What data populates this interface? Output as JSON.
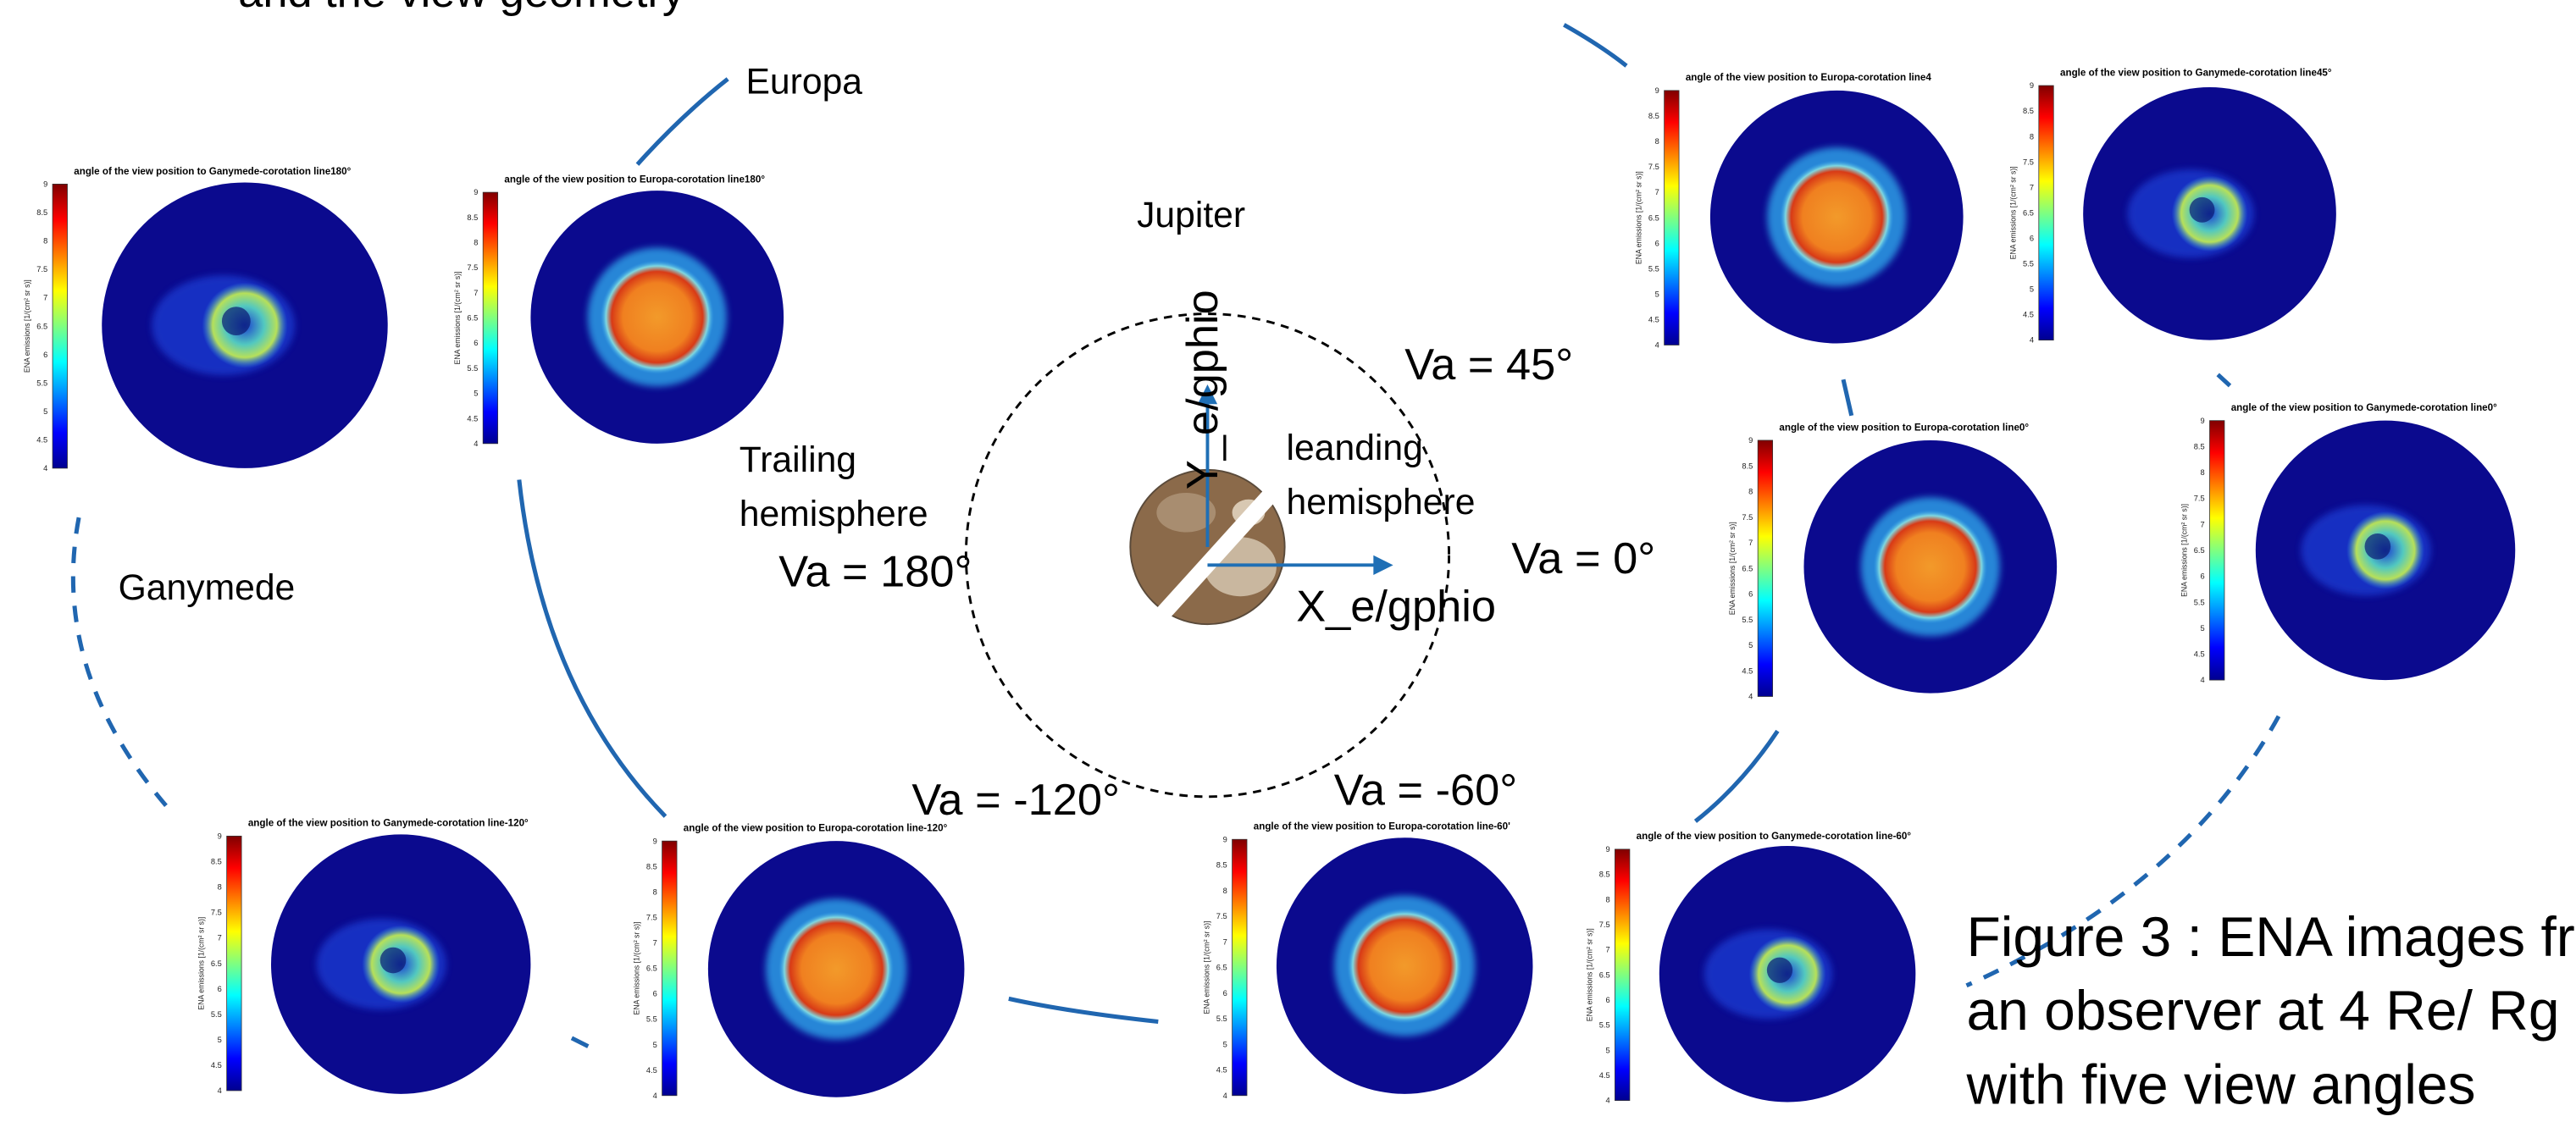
{
  "heading": "and the view geometry",
  "labels": {
    "europa": "Europa",
    "ganymede": "Ganymede",
    "jupiter": "Jupiter",
    "trailing": [
      "Trailing",
      "hemisphere"
    ],
    "leading": [
      "leanding",
      "hemisphere"
    ],
    "y_axis": "Y_e/gphio",
    "x_axis": "X_e/gphio"
  },
  "view_angles": [
    "Va = 45°",
    "Va = 0°",
    "Va = 180°",
    "Va = -120°",
    "Va = -60°"
  ],
  "caption": [
    "Figure 3 : ENA images fr",
    "an observer at 4 Re/ Rg",
    "with five view angles"
  ],
  "colorbar": {
    "label": "ENA emissions [1/(cm² sr s)]",
    "ticks": [
      "9",
      "8.5",
      "8",
      "7.5",
      "7",
      "6.5",
      "6",
      "5.5",
      "5",
      "4.5",
      "4"
    ]
  },
  "panels": [
    {
      "title": "angle of the view position to Ganymede-corotation line180°"
    },
    {
      "title": "angle of the view position to Europa-corotation line180°"
    },
    {
      "title": "angle of the view position to Europa-corotation line4"
    },
    {
      "title": "angle of the view position to Ganymede-corotation line45°"
    },
    {
      "title": "angle of the view position to Europa-corotation line0°"
    },
    {
      "title": "angle of the view position to Ganymede-corotation line0°"
    },
    {
      "title": "angle of the view position to Ganymede-corotation line-120°"
    },
    {
      "title": "angle of the view position to Europa-corotation line-120°"
    },
    {
      "title": "angle of the view position to Europa-corotation line-60'"
    },
    {
      "title": "angle of the view position to Ganymede-corotation line-60°"
    }
  ]
}
